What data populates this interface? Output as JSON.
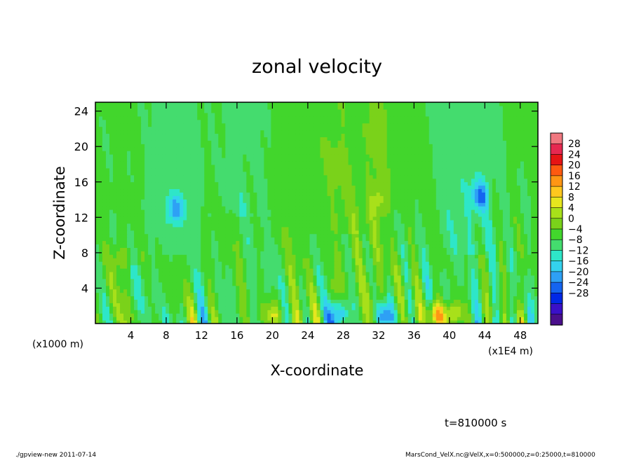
{
  "chart_data": {
    "type": "heatmap",
    "title": "zonal velocity",
    "xlabel": "X-coordinate",
    "ylabel": "Z-coordinate",
    "x_unit_left": "(x1000 m)",
    "x_unit_right": "(x1E4 m)",
    "xlim": [
      0,
      50
    ],
    "ylim": [
      0,
      25
    ],
    "x_ticks": [
      4,
      8,
      12,
      16,
      20,
      24,
      28,
      32,
      36,
      40,
      44,
      48
    ],
    "y_ticks": [
      4,
      8,
      12,
      16,
      20,
      24
    ],
    "colorbar": {
      "levels": [
        28,
        24,
        20,
        16,
        12,
        8,
        4,
        0,
        -4,
        -8,
        -12,
        -16,
        -20,
        -24,
        -28
      ],
      "colors": [
        "#4a0f8c",
        "#3a10c8",
        "#0028e6",
        "#1464f0",
        "#2ea0f5",
        "#34d2ee",
        "#2ee6c8",
        "#44dc6e",
        "#42d62c",
        "#7ad21a",
        "#a8e01a",
        "#e6e61e",
        "#ffc81e",
        "#ff9614",
        "#ff5a10",
        "#e61414",
        "#e62850",
        "#f07880"
      ]
    },
    "features": [
      {
        "x": 9.0,
        "z": 13.0,
        "value": -11
      },
      {
        "x": 43.5,
        "z": 14.5,
        "value": -13
      },
      {
        "x": 32.0,
        "z": 14.0,
        "value": 8
      },
      {
        "x": 3.0,
        "z": 7.5,
        "value": 9
      },
      {
        "x": 38.5,
        "z": 1.0,
        "value": 22
      },
      {
        "x": 40.5,
        "z": 1.0,
        "value": 19
      },
      {
        "x": 27.5,
        "z": 1.0,
        "value": -18
      },
      {
        "x": 32.5,
        "z": 0.8,
        "value": -16
      },
      {
        "x": 20.0,
        "z": 1.0,
        "value": 15
      }
    ],
    "footer_left": "./gpview-new  2011-07-14",
    "footer_right": "MarsCond_VelX.nc@VelX,x=0:500000,z=0:25000,t=810000",
    "time_label": "t=810000 s"
  }
}
